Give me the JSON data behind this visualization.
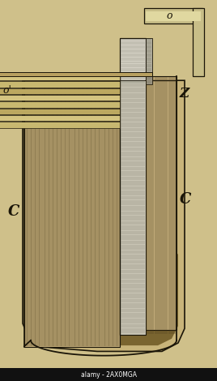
{
  "bg_color": "#cfc08a",
  "fig_width": 2.68,
  "fig_height": 4.7,
  "dpi": 100,
  "label_C_left": "C",
  "label_C_right": "C",
  "label_Z": "Z",
  "label_o_prime": "o'",
  "label_o": "o",
  "watermark": "alamy - 2AX0MGA",
  "lc": "#1a1508",
  "lc_light": "#3a3020",
  "copper_face_color": "#b0a070",
  "copper_hatch_color": "#3a3020",
  "zinc_face_color": "#d0ccc0",
  "zinc_hatch_color": "#888070",
  "container_outer": "#c0aa70",
  "container_dark": "#5a4820",
  "top_plate_color": "#c8b870",
  "connector_color": "#c0b060"
}
